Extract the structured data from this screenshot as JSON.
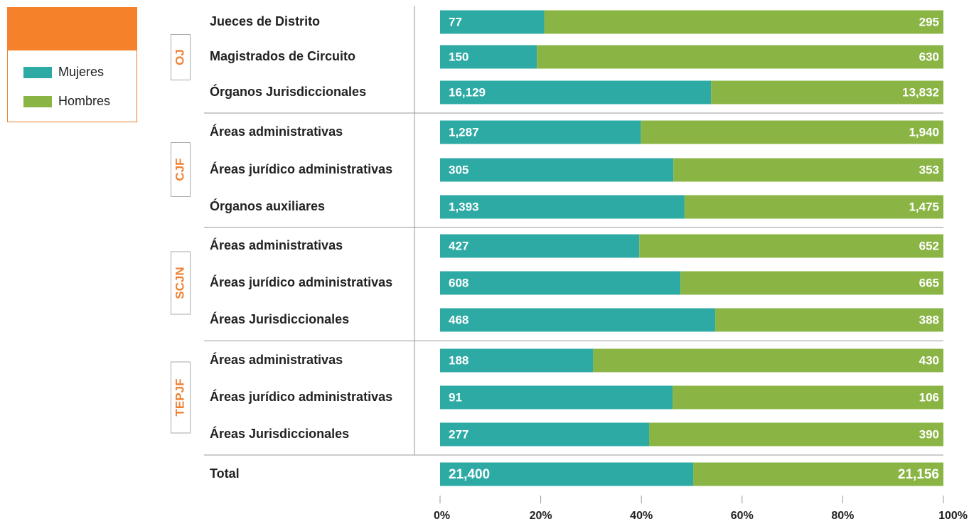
{
  "chart_data": {
    "type": "bar",
    "orientation": "horizontal",
    "stack": "percent",
    "categories": [
      "Jueces de Distrito",
      "Magistrados de Circuito",
      "Órganos Jurisdiccionales",
      "Áreas administrativas",
      "Áreas jurídico administrativas",
      "Órganos auxiliares",
      "Áreas administrativas",
      "Áreas jurídico administrativas",
      "Áreas Jurisdiccionales",
      "Áreas administrativas",
      "Áreas jurídico administrativas",
      "Áreas Jurisdiccionales",
      "Total"
    ],
    "groups": [
      {
        "label": "OJ",
        "rows": [
          0,
          1,
          2
        ]
      },
      {
        "label": "CJF",
        "rows": [
          3,
          4,
          5
        ]
      },
      {
        "label": "SCJN",
        "rows": [
          6,
          7,
          8
        ]
      },
      {
        "label": "TEPJF",
        "rows": [
          9,
          10,
          11
        ]
      }
    ],
    "series": [
      {
        "name": "Mujeres",
        "color": "#2eaaa5",
        "values": [
          77,
          150,
          16129,
          1287,
          305,
          1393,
          427,
          608,
          468,
          188,
          91,
          277,
          21400
        ],
        "value_labels": [
          "77",
          "150",
          "16,129",
          "1,287",
          "305",
          "1,393",
          "427",
          "608",
          "468",
          "188",
          "91",
          "277",
          "21,400"
        ]
      },
      {
        "name": "Hombres",
        "color": "#8ab545",
        "values": [
          295,
          630,
          13832,
          1940,
          353,
          1475,
          652,
          665,
          388,
          430,
          106,
          390,
          21156
        ],
        "value_labels": [
          "295",
          "630",
          "13,832",
          "1,940",
          "353",
          "1,475",
          "652",
          "665",
          "388",
          "430",
          "106",
          "390",
          "21,156"
        ]
      }
    ],
    "xlim": [
      0,
      100
    ],
    "xticks": [
      {
        "value": 0,
        "label": "0%"
      },
      {
        "value": 20,
        "label": "20%"
      },
      {
        "value": 40,
        "label": "40%"
      },
      {
        "value": 60,
        "label": "60%"
      },
      {
        "value": 80,
        "label": "80%"
      },
      {
        "value": 100,
        "label": "100%"
      }
    ],
    "group_color": "#f08030"
  }
}
